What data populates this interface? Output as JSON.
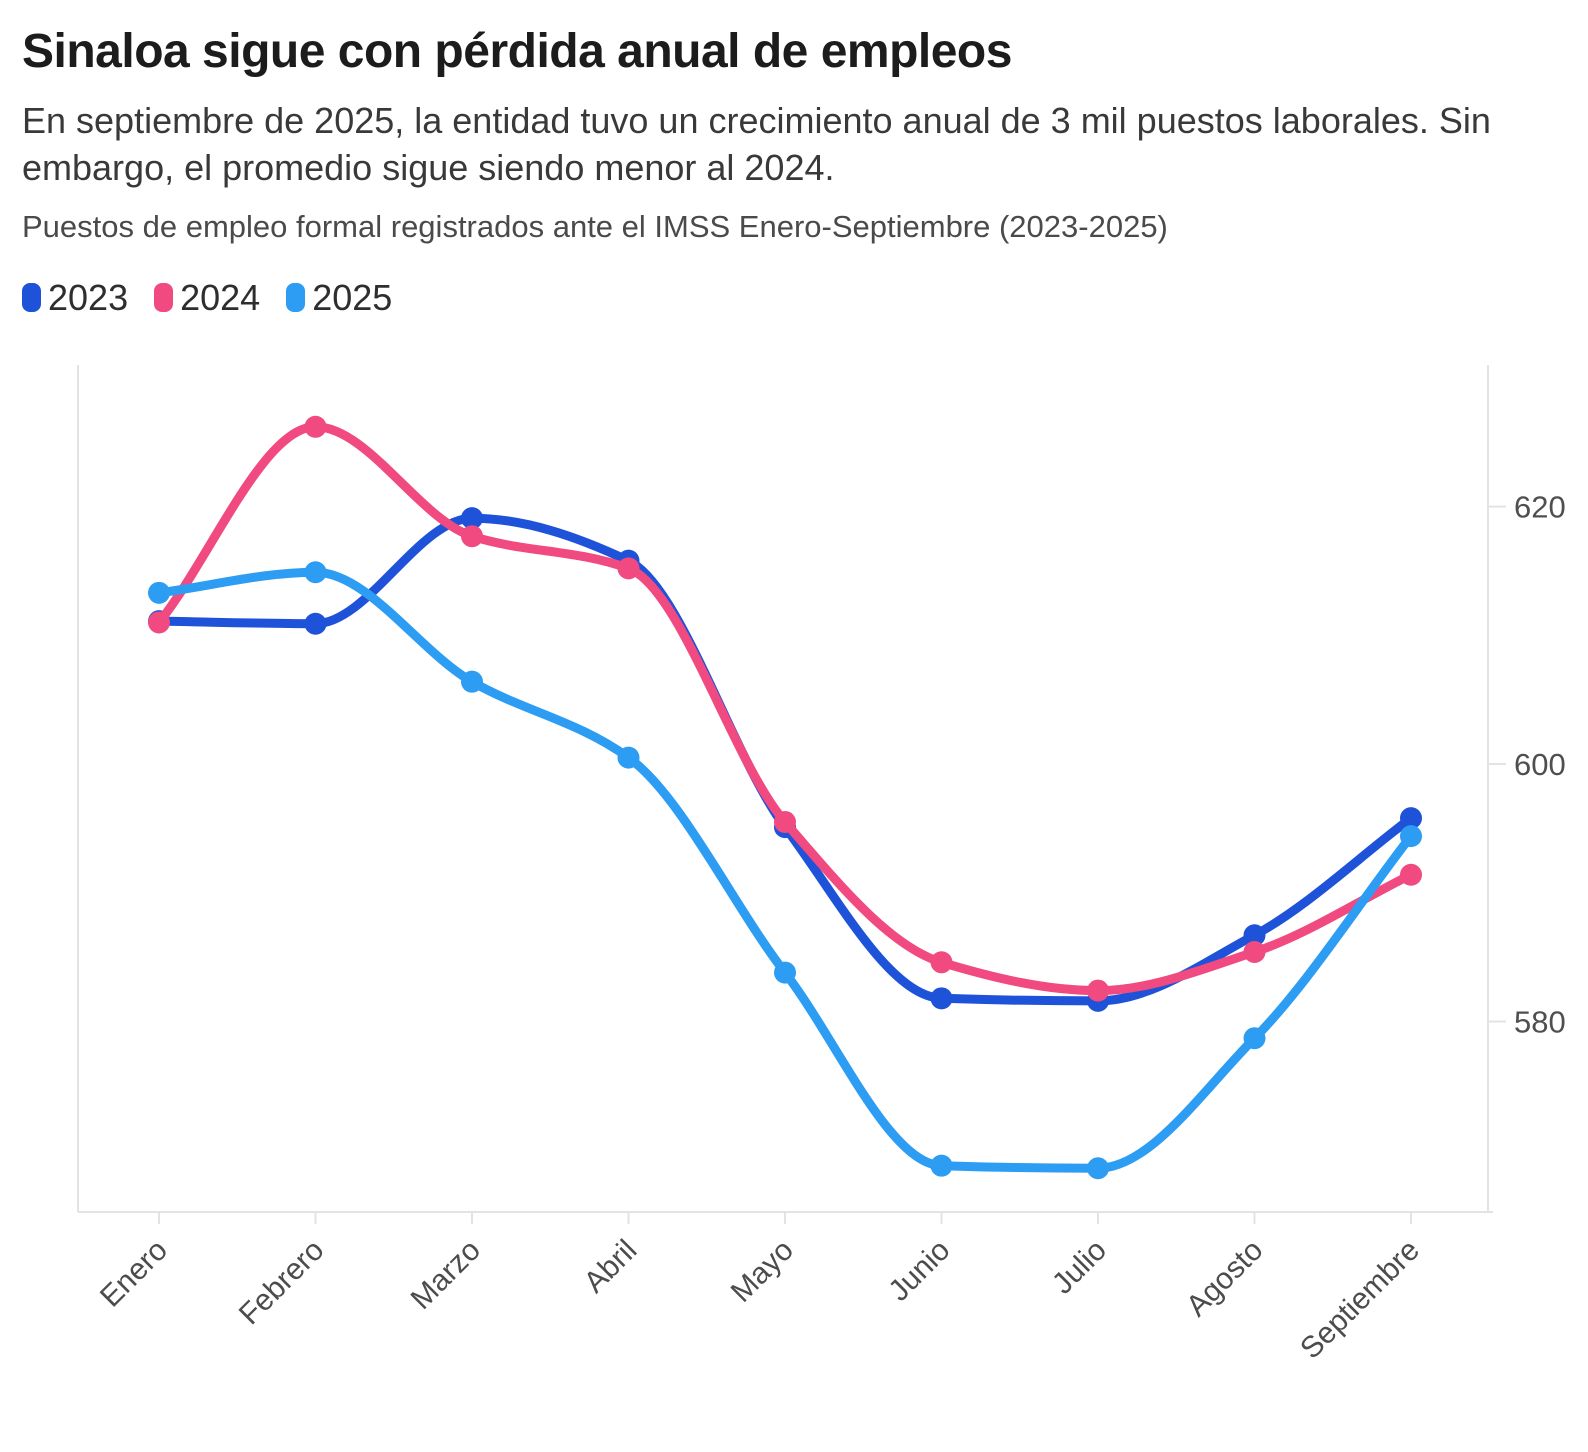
{
  "header": {
    "title": "Sinaloa sigue con pérdida anual de empleos",
    "subtitle": "En septiembre de 2025, la entidad tuvo un crecimiento anual de 3 mil puestos laborales. Sin embargo, el promedio sigue siendo menor al 2024.",
    "caption": "Puestos de empleo formal registrados ante el IMSS Enero-Septiembre (2023-2025)"
  },
  "legend": [
    {
      "label": "2023",
      "color": "#1e52d9"
    },
    {
      "label": "2024",
      "color": "#f04a81"
    },
    {
      "label": "2025",
      "color": "#2d9df4"
    }
  ],
  "chart_data": {
    "type": "line",
    "title": "Sinaloa sigue con pérdida anual de empleos",
    "categories": [
      "Enero",
      "Febrero",
      "Marzo",
      "Abril",
      "Mayo",
      "Junio",
      "Julio",
      "Agosto",
      "Septiembre"
    ],
    "series": [
      {
        "name": "2023",
        "color": "#1e52d9",
        "values": [
          611.1,
          610.9,
          619.1,
          615.8,
          595.1,
          581.8,
          581.6,
          586.7,
          595.8
        ]
      },
      {
        "name": "2024",
        "color": "#f04a81",
        "values": [
          611.0,
          626.2,
          617.7,
          615.2,
          595.5,
          584.6,
          582.4,
          585.4,
          591.4
        ]
      },
      {
        "name": "2025",
        "color": "#2d9df4",
        "values": [
          613.3,
          614.9,
          606.4,
          600.5,
          583.8,
          568.8,
          568.6,
          578.7,
          594.4
        ]
      }
    ],
    "xlabel": "",
    "ylabel": "",
    "yticks": [
      620,
      600,
      580
    ],
    "ylim": [
      565.2,
      631.0
    ],
    "y_axis_side": "right",
    "grid": "off",
    "legend_position": "top-left",
    "line_style": "smooth-monotone"
  }
}
